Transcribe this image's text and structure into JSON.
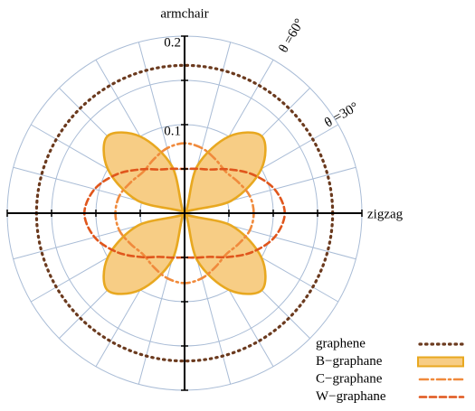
{
  "chart_data": {
    "type": "polar",
    "radial_axis_label": "armchair",
    "angular_axis_label": "zigzag",
    "annotations": [
      "θ =60°",
      "θ =30°"
    ],
    "rlim": [
      0,
      0.2
    ],
    "rticks": [
      0.1,
      0.2
    ],
    "rgrid": [
      0.05,
      0.1,
      0.15,
      0.2
    ],
    "theta_grid_step": 15,
    "theta": [
      0,
      15,
      30,
      45,
      60,
      75,
      90,
      105,
      120,
      135,
      150,
      165,
      180,
      195,
      210,
      225,
      240,
      255,
      270,
      285,
      300,
      315,
      330,
      345
    ],
    "series": [
      {
        "name": "graphene",
        "color": "#6b3a1e",
        "style": "dotted",
        "values": [
          0.167,
          0.167,
          0.167,
          0.167,
          0.167,
          0.167,
          0.167,
          0.167,
          0.167,
          0.167,
          0.167,
          0.167,
          0.167,
          0.167,
          0.167,
          0.167,
          0.167,
          0.167,
          0.167,
          0.167,
          0.167,
          0.167,
          0.167,
          0.167
        ]
      },
      {
        "name": "B−graphane",
        "color": "#e8a820",
        "fill": "#f7cd85",
        "style": "filled",
        "values": [
          0,
          0.055,
          0.1,
          0.123,
          0.1,
          0.055,
          0,
          0.055,
          0.1,
          0.123,
          0.1,
          0.055,
          0,
          0.055,
          0.1,
          0.123,
          0.1,
          0.055,
          0,
          0.055,
          0.1,
          0.123,
          0.1,
          0.055
        ]
      },
      {
        "name": "C−graphane",
        "color": "#f08a3c",
        "style": "dashdot",
        "values": [
          0.078,
          0.076,
          0.07,
          0.066,
          0.07,
          0.076,
          0.079,
          0.076,
          0.07,
          0.066,
          0.07,
          0.076,
          0.078,
          0.076,
          0.07,
          0.066,
          0.07,
          0.076,
          0.079,
          0.076,
          0.07,
          0.066,
          0.07,
          0.076
        ]
      },
      {
        "name": "W−graphane",
        "color": "#e0561c",
        "style": "dashed",
        "values": [
          0.113,
          0.105,
          0.088,
          0.07,
          0.057,
          0.052,
          0.05,
          0.052,
          0.057,
          0.07,
          0.088,
          0.105,
          0.113,
          0.105,
          0.088,
          0.07,
          0.057,
          0.052,
          0.05,
          0.052,
          0.057,
          0.07,
          0.088,
          0.105
        ]
      }
    ]
  }
}
